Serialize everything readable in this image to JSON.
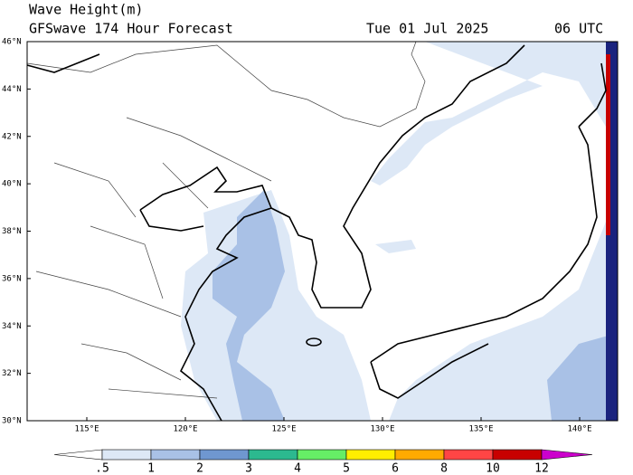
{
  "header": {
    "title": "Wave Height(m)",
    "subtitle": "GFSwave 174 Hour Forecast",
    "date": "Tue 01 Jul 2025",
    "time": "06 UTC"
  },
  "map": {
    "lat_labels": [
      "30°N",
      "32°N",
      "34°N",
      "36°N",
      "38°N",
      "40°N",
      "42°N",
      "44°N",
      "46°N"
    ],
    "lon_labels": [
      "115°E",
      "120°E",
      "125°E",
      "130°E",
      "135°E",
      "140°E"
    ]
  },
  "colorbar": {
    "labels": [
      ".5",
      "1",
      "2",
      "3",
      "4",
      "5",
      "6",
      "8",
      "10",
      "12"
    ],
    "colors": [
      "#ffffff",
      "#dde8f6",
      "#a9c1e6",
      "#6f97d0",
      "#2cb98f",
      "#66ee66",
      "#ffee00",
      "#ffaa00",
      "#ff4545",
      "#c80000",
      "#cc00cc"
    ]
  }
}
